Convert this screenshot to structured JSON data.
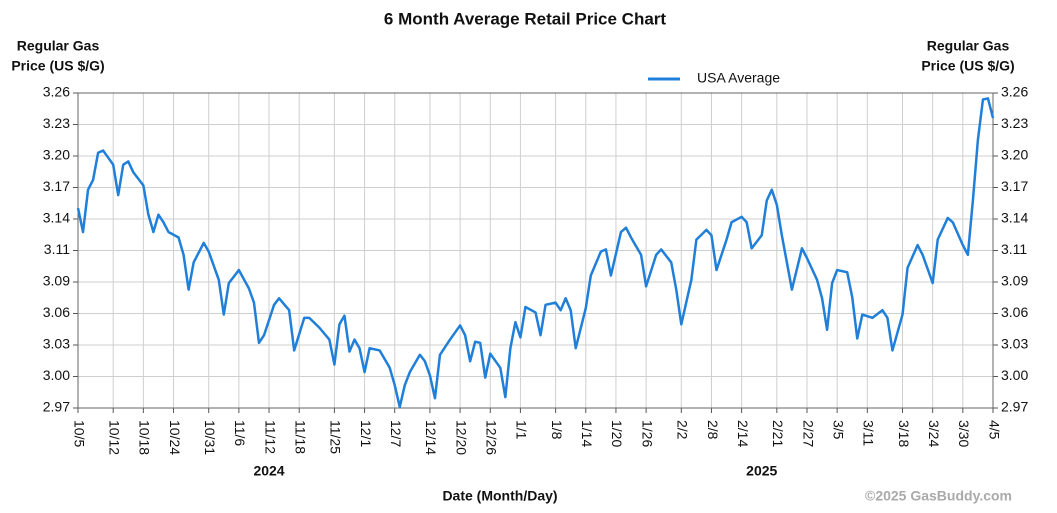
{
  "chart_data": {
    "type": "line",
    "title": "6 Month Average Retail Price Chart",
    "y_label_lines": [
      "Regular Gas",
      "Price (US $/G)"
    ],
    "x_label": "Date (Month/Day)",
    "credit": "©2025 GasBuddy.com",
    "legend": "top",
    "grid": true,
    "xlim": [
      "2024-10-05",
      "2025-04-05"
    ],
    "ylim": [
      2.97,
      3.26
    ],
    "yticks": [
      {
        "value": 2.97,
        "label": "2.97"
      },
      {
        "value": 2.999,
        "label": "3.00"
      },
      {
        "value": 3.028,
        "label": "3.03"
      },
      {
        "value": 3.057,
        "label": "3.06"
      },
      {
        "value": 3.086,
        "label": "3.09"
      },
      {
        "value": 3.115,
        "label": "3.11"
      },
      {
        "value": 3.144,
        "label": "3.14"
      },
      {
        "value": 3.173,
        "label": "3.17"
      },
      {
        "value": 3.202,
        "label": "3.20"
      },
      {
        "value": 3.231,
        "label": "3.23"
      },
      {
        "value": 3.26,
        "label": "3.26"
      }
    ],
    "xticks": [
      {
        "value": "2024-10-05",
        "label": "10/5"
      },
      {
        "value": "2024-10-12",
        "label": "10/12"
      },
      {
        "value": "2024-10-18",
        "label": "10/18"
      },
      {
        "value": "2024-10-24",
        "label": "10/24"
      },
      {
        "value": "2024-10-31",
        "label": "10/31"
      },
      {
        "value": "2024-11-06",
        "label": "11/6"
      },
      {
        "value": "2024-11-12",
        "label": "11/12"
      },
      {
        "value": "2024-11-18",
        "label": "11/18"
      },
      {
        "value": "2024-11-25",
        "label": "11/25"
      },
      {
        "value": "2024-12-01",
        "label": "12/1"
      },
      {
        "value": "2024-12-07",
        "label": "12/7"
      },
      {
        "value": "2024-12-14",
        "label": "12/14"
      },
      {
        "value": "2024-12-20",
        "label": "12/20"
      },
      {
        "value": "2024-12-26",
        "label": "12/26"
      },
      {
        "value": "2025-01-01",
        "label": "1/1"
      },
      {
        "value": "2025-01-08",
        "label": "1/8"
      },
      {
        "value": "2025-01-14",
        "label": "1/14"
      },
      {
        "value": "2025-01-20",
        "label": "1/20"
      },
      {
        "value": "2025-01-26",
        "label": "1/26"
      },
      {
        "value": "2025-02-02",
        "label": "2/2"
      },
      {
        "value": "2025-02-08",
        "label": "2/8"
      },
      {
        "value": "2025-02-14",
        "label": "2/14"
      },
      {
        "value": "2025-02-21",
        "label": "2/21"
      },
      {
        "value": "2025-02-27",
        "label": "2/27"
      },
      {
        "value": "2025-03-05",
        "label": "3/5"
      },
      {
        "value": "2025-03-11",
        "label": "3/11"
      },
      {
        "value": "2025-03-18",
        "label": "3/18"
      },
      {
        "value": "2025-03-24",
        "label": "3/24"
      },
      {
        "value": "2025-03-30",
        "label": "3/30"
      },
      {
        "value": "2025-04-05",
        "label": "4/5"
      }
    ],
    "year_ticks": [
      {
        "value": "2024-11-12",
        "label": "2024"
      },
      {
        "value": "2025-02-18",
        "label": "2025"
      }
    ],
    "x": [
      "2024-10-05",
      "2024-10-06",
      "2024-10-07",
      "2024-10-08",
      "2024-10-09",
      "2024-10-10",
      "2024-10-12",
      "2024-10-13",
      "2024-10-14",
      "2024-10-15",
      "2024-10-16",
      "2024-10-18",
      "2024-10-19",
      "2024-10-20",
      "2024-10-21",
      "2024-10-22",
      "2024-10-23",
      "2024-10-25",
      "2024-10-26",
      "2024-10-27",
      "2024-10-28",
      "2024-10-30",
      "2024-10-31",
      "2024-11-02",
      "2024-11-03",
      "2024-11-04",
      "2024-11-06",
      "2024-11-08",
      "2024-11-09",
      "2024-11-10",
      "2024-11-11",
      "2024-11-13",
      "2024-11-14",
      "2024-11-16",
      "2024-11-17",
      "2024-11-19",
      "2024-11-20",
      "2024-11-22",
      "2024-11-24",
      "2024-11-25",
      "2024-11-26",
      "2024-11-27",
      "2024-11-28",
      "2024-11-29",
      "2024-11-30",
      "2024-12-01",
      "2024-12-02",
      "2024-12-04",
      "2024-12-06",
      "2024-12-07",
      "2024-12-08",
      "2024-12-09",
      "2024-12-10",
      "2024-12-12",
      "2024-12-13",
      "2024-12-14",
      "2024-12-15",
      "2024-12-16",
      "2024-12-18",
      "2024-12-20",
      "2024-12-21",
      "2024-12-22",
      "2024-12-23",
      "2024-12-24",
      "2024-12-25",
      "2024-12-26",
      "2024-12-28",
      "2024-12-29",
      "2024-12-30",
      "2024-12-31",
      "2025-01-01",
      "2025-01-02",
      "2025-01-04",
      "2025-01-05",
      "2025-01-06",
      "2025-01-08",
      "2025-01-09",
      "2025-01-10",
      "2025-01-11",
      "2025-01-12",
      "2025-01-14",
      "2025-01-15",
      "2025-01-17",
      "2025-01-18",
      "2025-01-19",
      "2025-01-21",
      "2025-01-22",
      "2025-01-23",
      "2025-01-25",
      "2025-01-26",
      "2025-01-28",
      "2025-01-29",
      "2025-01-31",
      "2025-02-01",
      "2025-02-02",
      "2025-02-04",
      "2025-02-05",
      "2025-02-07",
      "2025-02-08",
      "2025-02-09",
      "2025-02-11",
      "2025-02-12",
      "2025-02-14",
      "2025-02-15",
      "2025-02-16",
      "2025-02-18",
      "2025-02-19",
      "2025-02-20",
      "2025-02-21",
      "2025-02-22",
      "2025-02-24",
      "2025-02-26",
      "2025-02-27",
      "2025-03-01",
      "2025-03-02",
      "2025-03-03",
      "2025-03-04",
      "2025-03-05",
      "2025-03-07",
      "2025-03-08",
      "2025-03-09",
      "2025-03-10",
      "2025-03-12",
      "2025-03-14",
      "2025-03-15",
      "2025-03-16",
      "2025-03-18",
      "2025-03-19",
      "2025-03-21",
      "2025-03-22",
      "2025-03-24",
      "2025-03-25",
      "2025-03-27",
      "2025-03-28",
      "2025-03-30",
      "2025-03-31",
      "2025-04-01",
      "2025-04-02",
      "2025-04-03",
      "2025-04-04",
      "2025-04-05"
    ],
    "series": [
      {
        "name": "USA Average",
        "color": "#1f7fd9",
        "values": [
          3.154,
          3.132,
          3.171,
          3.18,
          3.205,
          3.207,
          3.194,
          3.166,
          3.194,
          3.197,
          3.187,
          3.175,
          3.148,
          3.132,
          3.148,
          3.141,
          3.132,
          3.127,
          3.111,
          3.079,
          3.104,
          3.122,
          3.114,
          3.088,
          3.056,
          3.085,
          3.097,
          3.08,
          3.067,
          3.03,
          3.037,
          3.065,
          3.071,
          3.06,
          3.023,
          3.053,
          3.053,
          3.044,
          3.033,
          3.01,
          3.047,
          3.055,
          3.022,
          3.033,
          3.025,
          3.003,
          3.025,
          3.023,
          3.007,
          2.991,
          2.971,
          2.991,
          3.003,
          3.019,
          3.013,
          3.0,
          2.979,
          3.019,
          3.033,
          3.046,
          3.037,
          3.013,
          3.031,
          3.03,
          2.998,
          3.02,
          3.007,
          2.98,
          3.025,
          3.049,
          3.035,
          3.063,
          3.058,
          3.037,
          3.065,
          3.067,
          3.06,
          3.071,
          3.06,
          3.025,
          3.062,
          3.092,
          3.114,
          3.116,
          3.092,
          3.132,
          3.136,
          3.127,
          3.111,
          3.082,
          3.111,
          3.116,
          3.104,
          3.079,
          3.047,
          3.088,
          3.125,
          3.134,
          3.129,
          3.097,
          3.125,
          3.141,
          3.146,
          3.141,
          3.117,
          3.129,
          3.161,
          3.171,
          3.157,
          3.129,
          3.079,
          3.117,
          3.108,
          3.088,
          3.071,
          3.042,
          3.085,
          3.097,
          3.095,
          3.072,
          3.034,
          3.056,
          3.053,
          3.06,
          3.053,
          3.023,
          3.056,
          3.099,
          3.12,
          3.111,
          3.085,
          3.125,
          3.145,
          3.141,
          3.12,
          3.111,
          3.161,
          3.217,
          3.254,
          3.255,
          3.237
        ]
      }
    ]
  }
}
